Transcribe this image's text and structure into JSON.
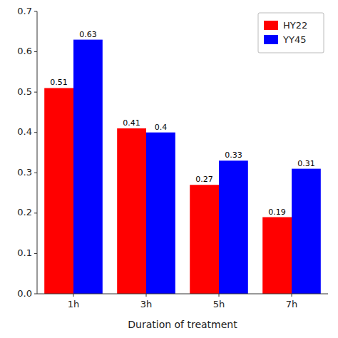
{
  "chart_data": {
    "type": "bar",
    "x_label": "Duration of treatment",
    "categories": [
      "1h",
      "3h",
      "5h",
      "7h"
    ],
    "series": [
      {
        "name": "HY22",
        "color": "#FF0000",
        "values": [
          0.51,
          0.41,
          0.27,
          0.19
        ]
      },
      {
        "name": "YY45",
        "color": "#0000FF",
        "values": [
          0.63,
          0.4,
          0.33,
          0.31
        ]
      }
    ],
    "ylim": [
      0.0,
      0.7
    ],
    "yticks": [
      {
        "value": 0.0,
        "label": "0.0"
      },
      0.1,
      0.2,
      0.3,
      0.4,
      0.5,
      0.6,
      0.7
    ],
    "data_labels": true,
    "legend": "upper right",
    "grid": false
  }
}
